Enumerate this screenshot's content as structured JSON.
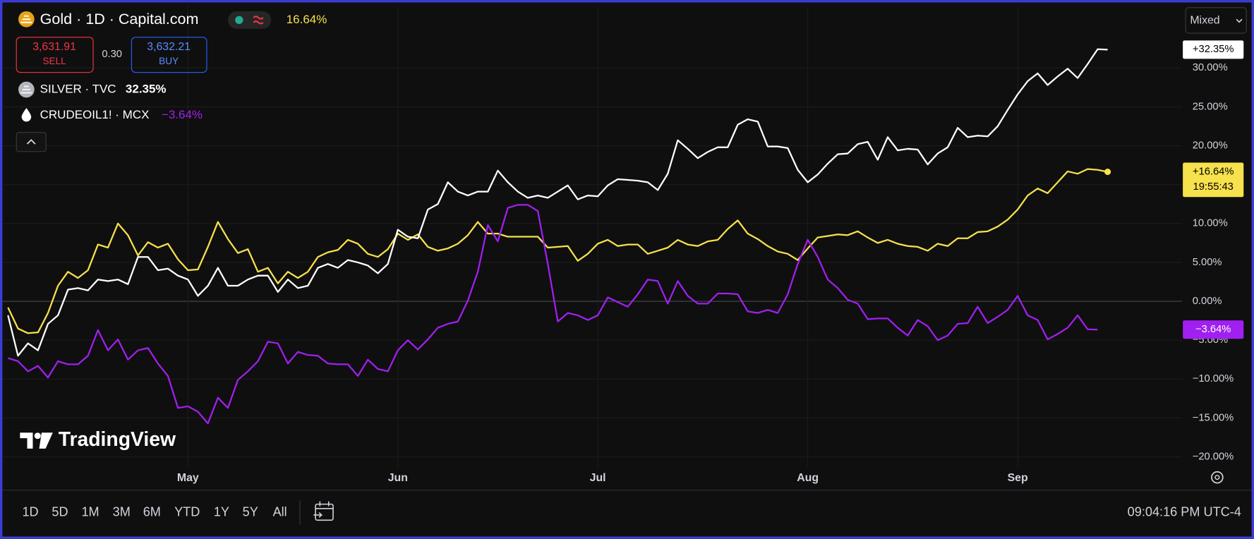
{
  "chart_data": {
    "type": "line",
    "categories": [
      null,
      null,
      null,
      null,
      null,
      null,
      null,
      null,
      null,
      null,
      null,
      null,
      null,
      null,
      null,
      null,
      null,
      null,
      "May",
      null,
      null,
      null,
      null,
      null,
      null,
      null,
      null,
      null,
      null,
      null,
      null,
      null,
      null,
      null,
      null,
      null,
      null,
      null,
      null,
      "Jun",
      null,
      null,
      null,
      null,
      null,
      null,
      null,
      null,
      null,
      null,
      null,
      null,
      null,
      null,
      null,
      null,
      null,
      null,
      null,
      "Jul",
      null,
      null,
      null,
      null,
      null,
      null,
      null,
      null,
      null,
      null,
      null,
      null,
      null,
      null,
      null,
      null,
      null,
      null,
      null,
      null,
      "Aug",
      null,
      null,
      null,
      null,
      null,
      null,
      null,
      null,
      null,
      null,
      null,
      null,
      null,
      null,
      null,
      null,
      null,
      null,
      null,
      null,
      "Sep",
      null,
      null,
      null,
      null,
      null,
      null,
      null,
      null,
      null
    ],
    "series": [
      {
        "name": "Gold · 1D · Capital.com",
        "color": "#f7e14c",
        "legend_value": "16.64%",
        "axis_label": "+16.64%",
        "axis_sublabel": "19:55:43",
        "values": [
          -0.8,
          -3.5,
          -4.1,
          -4,
          -1.5,
          2,
          3.8,
          3,
          4,
          7.3,
          6.9,
          10,
          8.5,
          5.9,
          7.6,
          6.9,
          7.4,
          5.4,
          4,
          4.1,
          7,
          10.2,
          8,
          6.2,
          6.7,
          3.8,
          4.3,
          2.3,
          3.8,
          3,
          3.8,
          5.7,
          6.3,
          6.6,
          7.9,
          7.4,
          6.1,
          5.7,
          6.7,
          8.7,
          7.9,
          8.6,
          7,
          6.5,
          6.8,
          7.4,
          8.5,
          10.2,
          8.7,
          8.7,
          8.3,
          8.3,
          8.3,
          8.3,
          6.9,
          7,
          7.1,
          5.2,
          6.1,
          7.4,
          7.9,
          7.1,
          7.3,
          7.3,
          6.1,
          6.5,
          6.9,
          7.9,
          7.3,
          7.1,
          7.7,
          7.9,
          9.3,
          10.4,
          8.7,
          8,
          7.1,
          6.4,
          6.1,
          5.3,
          6.8,
          8.2,
          8.4,
          8.6,
          8.5,
          9,
          8.2,
          7.5,
          7.9,
          7.4,
          7.1,
          7,
          6.5,
          7.4,
          7.1,
          8.1,
          8.1,
          8.9,
          9,
          9.6,
          10.5,
          11.8,
          13.6,
          14.5,
          13.9,
          15.3,
          16.7,
          16.4,
          17,
          16.9,
          16.64
        ]
      },
      {
        "name": "SILVER · TVC",
        "color": "#ffffff",
        "legend_value": "32.35%",
        "axis_label": "+32.35%",
        "values": [
          -1.8,
          -7,
          -5.4,
          -6.3,
          -2.9,
          -1.8,
          1.5,
          1.7,
          1.4,
          2.8,
          2.6,
          2.8,
          2.2,
          5.7,
          5.7,
          4,
          4.2,
          3.3,
          2.8,
          0.7,
          2,
          4.3,
          2,
          2,
          2.8,
          3.3,
          3.3,
          1.2,
          2.8,
          1.7,
          2,
          4.3,
          4.8,
          4.3,
          5.3,
          5,
          4.6,
          3.6,
          4.8,
          9.2,
          8.3,
          8.1,
          11.8,
          12.5,
          15.3,
          14.1,
          13.6,
          14.1,
          14.1,
          16.8,
          15.3,
          14.1,
          13.3,
          13.6,
          13.3,
          14.1,
          14.9,
          13.1,
          13.6,
          13.5,
          14.9,
          15.7,
          15.6,
          15.5,
          15.3,
          14.3,
          16.4,
          20.7,
          19.6,
          18.4,
          19.2,
          19.8,
          19.8,
          22.7,
          23.4,
          23.1,
          19.9,
          19.9,
          19.7,
          16.9,
          15.3,
          16.3,
          17.7,
          18.9,
          19,
          20.2,
          20.5,
          18.2,
          21.1,
          19.4,
          19.6,
          19.5,
          17.6,
          19,
          19.8,
          22.3,
          21.1,
          21.3,
          21.2,
          22.5,
          24.6,
          26.6,
          28.3,
          29.3,
          27.8,
          28.9,
          29.9,
          28.7,
          30.5,
          32.4,
          32.35
        ]
      },
      {
        "name": "CRUDEOIL1! · MCX",
        "color": "#a11ff0",
        "legend_value": "−3.64%",
        "axis_label": "−3.64%",
        "values": [
          -7.3,
          -7.7,
          -9,
          -8.3,
          -9.8,
          -7.7,
          -8.1,
          -8.1,
          -7,
          -3.7,
          -6.3,
          -4.9,
          -7.5,
          -6.3,
          -6,
          -8,
          -9.6,
          -13.7,
          -13.5,
          -14.2,
          -15.7,
          -12.4,
          -13.7,
          -10.1,
          -9,
          -7.7,
          -5.2,
          -5.4,
          -8,
          -6.5,
          -6.9,
          -7,
          -8,
          -8.1,
          -8.1,
          -9.6,
          -7.5,
          -8.7,
          -9,
          -6.3,
          -5,
          -6.2,
          -4.9,
          -3.4,
          -2.9,
          -2.6,
          0.1,
          3.8,
          9.8,
          7.7,
          12,
          12.4,
          12.4,
          11.6,
          4.8,
          -2.6,
          -1.5,
          -1.8,
          -2.4,
          -1.8,
          0.5,
          -0.1,
          -0.7,
          0.9,
          2.8,
          2.6,
          -0.3,
          2.6,
          0.7,
          -0.3,
          -0.3,
          1,
          1,
          0.9,
          -1.3,
          -1.5,
          -1.1,
          -1.5,
          0.9,
          4.8,
          7.9,
          5.7,
          2.8,
          1.7,
          0.2,
          -0.3,
          -2.3,
          -2.2,
          -2.2,
          -3.4,
          -4.4,
          -2.4,
          -3.2,
          -5,
          -4.4,
          -2.9,
          -2.8,
          -0.7,
          -2.8,
          -2,
          -1.1,
          0.7,
          -1.8,
          -2.4,
          -4.9,
          -4.2,
          -3.4,
          -1.8,
          -3.6,
          -3.64,
          null
        ]
      }
    ],
    "ylim": [
      -21.4,
      37.9
    ],
    "yticks": [
      {
        "value": -20,
        "label": "−20.00%"
      },
      {
        "value": -15,
        "label": "−15.00%"
      },
      {
        "value": -10,
        "label": "−10.00%"
      },
      {
        "value": -5,
        "label": "−5.00%"
      },
      {
        "value": 0,
        "label": "0.00%"
      },
      {
        "value": 5,
        "label": "5.00%"
      },
      {
        "value": 10,
        "label": "10.00%"
      },
      {
        "value": 15,
        "label": "15.00%"
      },
      {
        "value": 20,
        "label": "20.00%"
      },
      {
        "value": 25,
        "label": "25.00%"
      },
      {
        "value": 30,
        "label": "30.00%"
      }
    ],
    "grid": true
  },
  "ui": {
    "sell_price": "3,631.91",
    "sell": "SELL",
    "spread": "0.30",
    "buy_price": "3,632.21",
    "buy": "BUY",
    "mode": "Mixed",
    "brand": "TradingView",
    "ranges": [
      "1D",
      "5D",
      "1M",
      "3M",
      "6M",
      "YTD",
      "1Y",
      "5Y",
      "All"
    ],
    "clock": "09:04:16 PM UTC-4"
  }
}
